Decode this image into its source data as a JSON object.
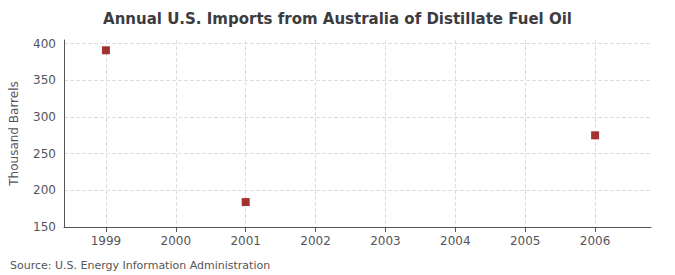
{
  "chart_data": {
    "type": "scatter",
    "title": "Annual U.S. Imports from Australia of Distillate Fuel Oil",
    "ylabel": "Thousand Barrels",
    "annotations": [
      "Source: U.S. Energy Information Administration"
    ],
    "x": [
      1999,
      2001,
      2006
    ],
    "values": [
      391,
      184,
      275
    ],
    "color": "#8B0000",
    "marker": "square",
    "xlim": [
      1998.4,
      2006.8
    ],
    "xticks": [
      1999,
      2000,
      2001,
      2002,
      2003,
      2004,
      2005,
      2006
    ],
    "ylim": [
      150,
      405
    ],
    "yticks": [
      150,
      200,
      250,
      300,
      350,
      400
    ],
    "grid": true
  }
}
